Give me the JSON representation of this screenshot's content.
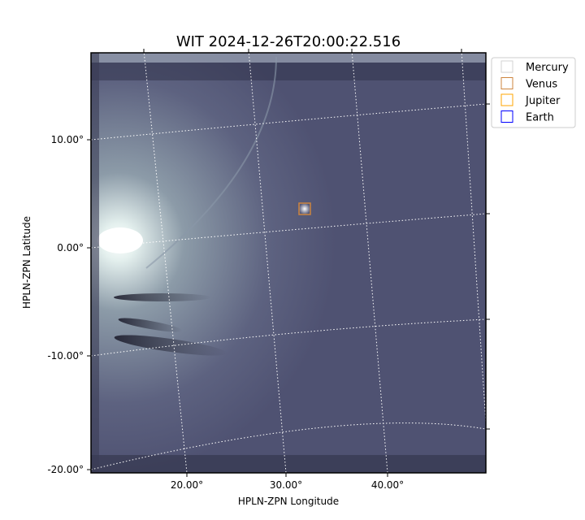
{
  "chart_data": {
    "type": "heatmap",
    "title": "WIT 2024-12-26T20:00:22.516",
    "xlabel": "HPLN-ZPN Longitude",
    "ylabel": "HPLN-ZPN Latitude",
    "x_ticks": [
      "20.00°",
      "30.00°",
      "40.00°"
    ],
    "y_ticks": [
      "10.00°",
      "0.00°",
      "-10.00°",
      "-20.00°"
    ],
    "colormap": "bone",
    "grid": true,
    "legend_position": "outside-top-right",
    "legend": [
      {
        "name": "Mercury",
        "color": "#d3d3d3"
      },
      {
        "name": "Venus",
        "color": "#cd853f"
      },
      {
        "name": "Jupiter",
        "color": "#ffa500"
      },
      {
        "name": "Earth",
        "color": "#0000ff"
      }
    ],
    "markers": [
      {
        "name": "Venus",
        "lon": 31.8,
        "lat": 3.6
      }
    ]
  }
}
